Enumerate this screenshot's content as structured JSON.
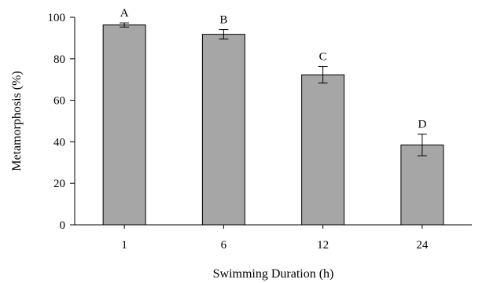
{
  "chart_data": {
    "type": "bar",
    "title": "",
    "xlabel": "Swimming Duration (h)",
    "ylabel": "Metamorphosis (%)",
    "ylim": [
      0,
      100
    ],
    "yticks": [
      0,
      20,
      40,
      60,
      80,
      100
    ],
    "categories": [
      "1",
      "6",
      "12",
      "24"
    ],
    "values": [
      96.3,
      91.8,
      72.3,
      38.5
    ],
    "errors": [
      1.0,
      2.3,
      4.0,
      5.2
    ],
    "significance_labels": [
      "A",
      "B",
      "C",
      "D"
    ],
    "bar_color": "#a6a6a6",
    "bar_edge_color": "#000000",
    "grid": false,
    "legend": "none"
  }
}
